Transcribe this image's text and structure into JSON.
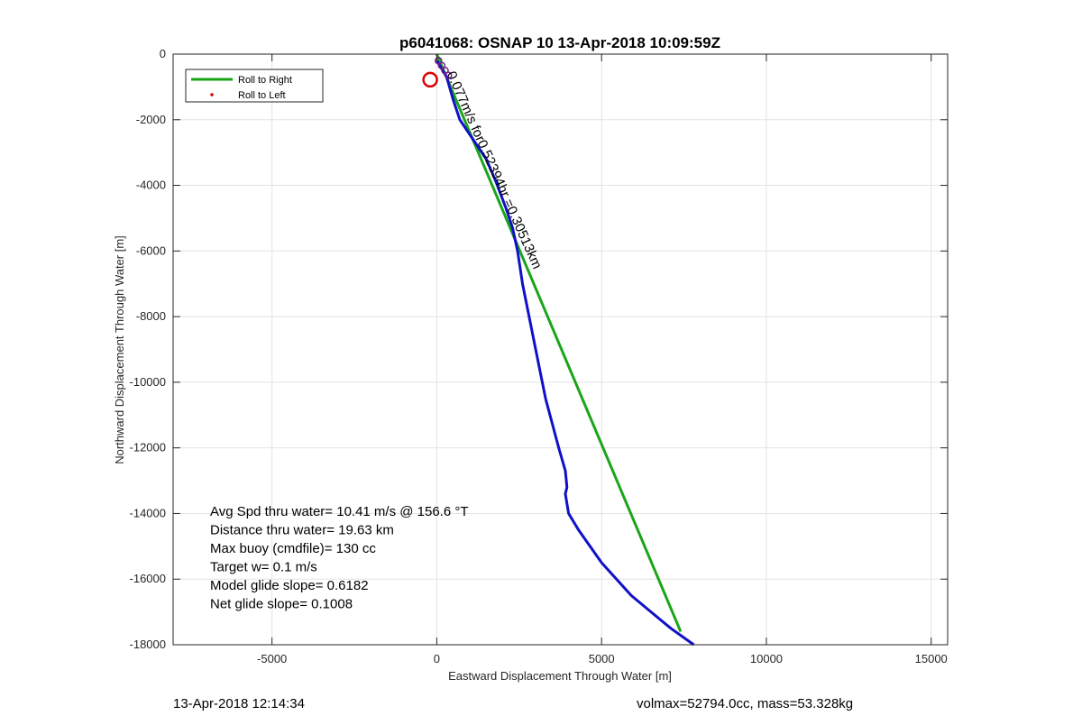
{
  "footer": {
    "timestamp": "13-Apr-2018 12:14:34",
    "vol_mass": "volmax=52794.0cc, mass=53.328kg"
  },
  "chart_data": {
    "type": "line",
    "title": "p6041068: OSNAP 10 13-Apr-2018 10:09:59Z",
    "xlabel": "Eastward Displacement Through Water [m]",
    "ylabel": "Northward Displacement Through Water [m]",
    "xlim": [
      -8000,
      15500
    ],
    "ylim": [
      -18000,
      0
    ],
    "xticks": [
      -5000,
      0,
      5000,
      10000,
      15000
    ],
    "yticks": [
      0,
      -2000,
      -4000,
      -6000,
      -8000,
      -10000,
      -12000,
      -14000,
      -16000,
      -18000
    ],
    "grid": true,
    "legend": {
      "placement": "top-left",
      "entries": [
        {
          "label": "Roll to Right",
          "color": "#1aa51a",
          "marker": "line"
        },
        {
          "label": "Roll to Left",
          "color": "#dd0000",
          "marker": "dot"
        }
      ]
    },
    "series": [
      {
        "color": "#1aa51a",
        "x": [
          0,
          7400
        ],
        "y": [
          0,
          -17600
        ]
      },
      {
        "color": "#1010c8",
        "x": [
          0,
          300,
          500,
          700,
          1100,
          1500,
          1800,
          2100,
          2300,
          2450,
          2600,
          2800,
          3000,
          3300,
          3700,
          3900,
          3950,
          3900,
          4000,
          4300,
          5000,
          5900,
          6500,
          7100,
          7800
        ],
        "y": [
          -200,
          -700,
          -1400,
          -2000,
          -2600,
          -3200,
          -3900,
          -4700,
          -5300,
          -6000,
          -7000,
          -8000,
          -9000,
          -10500,
          -12000,
          -12700,
          -13200,
          -13400,
          -14000,
          -14500,
          -15500,
          -16500,
          -17000,
          -17500,
          -18000
        ]
      }
    ],
    "circle_marker": {
      "x": -200,
      "y": -780,
      "color": "#dd0000"
    },
    "purple_markers": {
      "color": "#7a1c8c",
      "x": [
        50,
        150,
        250,
        350
      ],
      "y": [
        -200,
        -350,
        -500,
        -650
      ]
    },
    "annotation": {
      "text": "0.077m/s for0.52394hr =0.30513km",
      "x": 300,
      "y": -600,
      "angle": 66
    },
    "stats": [
      "Avg Spd thru water= 10.41 m/s @ 156.6 °T",
      "Distance thru water= 19.63 km",
      "Max buoy (cmdfile)= 130 cc",
      "Target w= 0.1 m/s",
      "Model glide slope= 0.6182",
      "Net glide slope= 0.1008"
    ]
  }
}
